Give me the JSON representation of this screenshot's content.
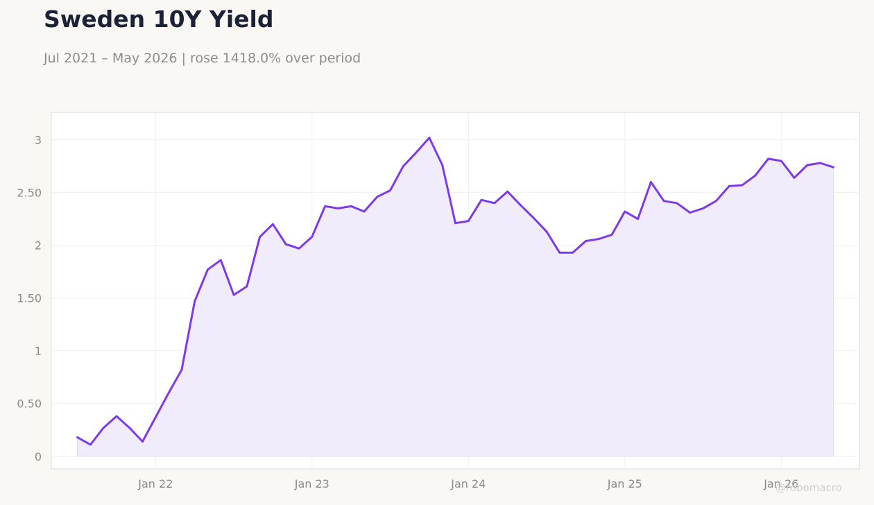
{
  "header": {
    "title": "Sweden 10Y Yield",
    "subtitle": "Jul 2021 – May 2026 | rose 1418.0% over period"
  },
  "watermark": "@robomacro",
  "colors": {
    "line": "#7c3aed",
    "fill": "#f1ecfc",
    "background": "#f9f8f5",
    "plot_background": "#ffffff",
    "grid": "#efefef",
    "axis_text": "#8a8a8a",
    "title": "#1b2237"
  },
  "chart_data": {
    "type": "area",
    "title": "Sweden 10Y Yield",
    "subtitle": "Jul 2021 – May 2026 | rose 1418.0% over period",
    "xlabel": "",
    "ylabel": "",
    "grid": true,
    "legend": "none",
    "ylim": [
      -0.12,
      3.26
    ],
    "xlim": [
      "2021-05",
      "2026-07"
    ],
    "y_ticks": [
      0,
      0.5,
      1,
      1.5,
      2,
      2.5,
      3
    ],
    "y_tick_labels": [
      "0",
      "0.50",
      "1",
      "1.50",
      "2",
      "2.50",
      "3"
    ],
    "x_ticks": [
      "2022-01",
      "2023-01",
      "2024-01",
      "2025-01",
      "2026-01"
    ],
    "x_tick_labels": [
      "Jan 22",
      "Jan 23",
      "Jan 24",
      "Jan 25",
      "Jan 26"
    ],
    "x": [
      "2021-07",
      "2021-08",
      "2021-09",
      "2021-10",
      "2021-11",
      "2021-12",
      "2022-01",
      "2022-02",
      "2022-03",
      "2022-04",
      "2022-05",
      "2022-06",
      "2022-07",
      "2022-08",
      "2022-09",
      "2022-10",
      "2022-11",
      "2022-12",
      "2023-01",
      "2023-02",
      "2023-03",
      "2023-04",
      "2023-05",
      "2023-06",
      "2023-07",
      "2023-08",
      "2023-09",
      "2023-10",
      "2023-11",
      "2023-12",
      "2024-01",
      "2024-02",
      "2024-03",
      "2024-04",
      "2024-05",
      "2024-06",
      "2024-07",
      "2024-08",
      "2024-09",
      "2024-10",
      "2024-11",
      "2024-12",
      "2025-01",
      "2025-02",
      "2025-03",
      "2025-04",
      "2025-05",
      "2025-06",
      "2025-07",
      "2025-08",
      "2025-09",
      "2025-10",
      "2025-11",
      "2025-12",
      "2026-01",
      "2026-02",
      "2026-03",
      "2026-04",
      "2026-05"
    ],
    "series": [
      {
        "values": [
          0.18,
          0.11,
          0.27,
          0.38,
          0.27,
          0.14,
          0.37,
          0.6,
          0.82,
          1.47,
          1.77,
          1.86,
          1.53,
          1.61,
          2.08,
          2.2,
          2.01,
          1.97,
          2.08,
          2.37,
          2.35,
          2.37,
          2.32,
          2.46,
          2.52,
          2.75,
          2.88,
          3.02,
          2.76,
          2.21,
          2.23,
          2.43,
          2.4,
          2.51,
          2.38,
          2.26,
          2.13,
          1.93,
          1.93,
          2.04,
          2.06,
          2.1,
          2.32,
          2.25,
          2.6,
          2.42,
          2.4,
          2.31,
          2.35,
          2.42,
          2.56,
          2.57,
          2.66,
          2.82,
          2.8,
          2.64,
          2.76,
          2.78,
          2.74
        ]
      }
    ]
  }
}
